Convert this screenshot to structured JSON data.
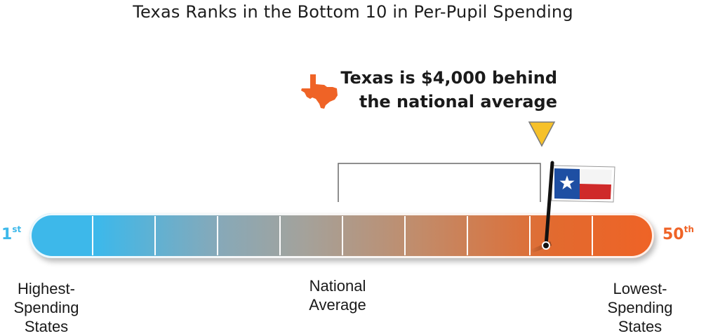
{
  "title": "Texas Ranks in the Bottom 10 in Per-Pupil Spending",
  "callout": {
    "line1": "Texas is $4,000 behind",
    "line2": "the national average"
  },
  "ranks": {
    "first_number": "1",
    "first_suffix": "st",
    "last_number": "50",
    "last_suffix": "th"
  },
  "labels": {
    "highest_line1": "Highest-",
    "highest_line2": "Spending",
    "highest_line3": "States",
    "average_line1": "National",
    "average_line2": "Average",
    "lowest_line1": "Lowest-",
    "lowest_line2": "Spending",
    "lowest_line3": "States"
  },
  "scale": {
    "segments": 10,
    "national_average_position": 0.5,
    "texas_position": 0.83
  },
  "colors": {
    "high_end": "#3db8ea",
    "low_end": "#ef6326",
    "marker": "#f6c12a",
    "texas_shape": "#ef6326",
    "flag_blue": "#1e4fa3",
    "flag_red": "#cf2a2a"
  },
  "icons": {
    "state_shape": "texas-state-icon",
    "marker": "triangle-down-icon",
    "flag": "texas-flag-icon"
  }
}
